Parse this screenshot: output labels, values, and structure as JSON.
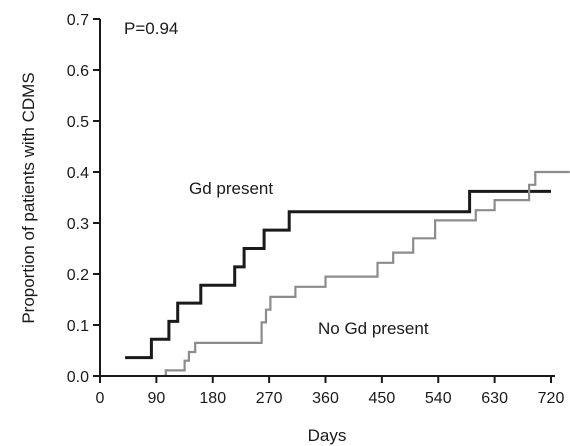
{
  "chart_data": {
    "type": "line",
    "step": true,
    "xlabel": "Days",
    "ylabel": "Proportion of patients with CDMS",
    "xlim": [
      0,
      720
    ],
    "ylim": [
      0,
      0.7
    ],
    "xticks": [
      0,
      90,
      180,
      270,
      360,
      450,
      540,
      630,
      720
    ],
    "yticks": [
      "0.0",
      "0.1",
      "0.2",
      "0.3",
      "0.4",
      "0.5",
      "0.6",
      "0.7"
    ],
    "grid": false,
    "annotations": {
      "pvalue": "P=0.94",
      "gd_present": "Gd present",
      "no_gd_present": "No Gd present"
    },
    "series": [
      {
        "name": "Gd present",
        "color": "#1a1a1a",
        "points": [
          [
            40,
            0.036
          ],
          [
            82,
            0.036
          ],
          [
            82,
            0.072
          ],
          [
            110,
            0.072
          ],
          [
            110,
            0.107
          ],
          [
            124,
            0.107
          ],
          [
            124,
            0.143
          ],
          [
            161,
            0.143
          ],
          [
            161,
            0.178
          ],
          [
            215,
            0.178
          ],
          [
            215,
            0.214
          ],
          [
            230,
            0.214
          ],
          [
            230,
            0.25
          ],
          [
            262,
            0.25
          ],
          [
            262,
            0.286
          ],
          [
            302,
            0.286
          ],
          [
            302,
            0.322
          ],
          [
            590,
            0.322
          ],
          [
            590,
            0.362
          ],
          [
            720,
            0.362
          ]
        ]
      },
      {
        "name": "No Gd present",
        "color": "#8c8c8c",
        "points": [
          [
            100,
            0.0
          ],
          [
            105,
            0.0
          ],
          [
            105,
            0.011
          ],
          [
            135,
            0.011
          ],
          [
            135,
            0.03
          ],
          [
            142,
            0.03
          ],
          [
            142,
            0.047
          ],
          [
            152,
            0.047
          ],
          [
            152,
            0.065
          ],
          [
            258,
            0.065
          ],
          [
            258,
            0.105
          ],
          [
            265,
            0.105
          ],
          [
            265,
            0.13
          ],
          [
            272,
            0.13
          ],
          [
            272,
            0.155
          ],
          [
            312,
            0.155
          ],
          [
            312,
            0.175
          ],
          [
            360,
            0.175
          ],
          [
            360,
            0.195
          ],
          [
            443,
            0.195
          ],
          [
            443,
            0.222
          ],
          [
            468,
            0.222
          ],
          [
            468,
            0.242
          ],
          [
            500,
            0.242
          ],
          [
            500,
            0.27
          ],
          [
            535,
            0.27
          ],
          [
            535,
            0.305
          ],
          [
            600,
            0.305
          ],
          [
            600,
            0.325
          ],
          [
            630,
            0.325
          ],
          [
            630,
            0.345
          ],
          [
            685,
            0.345
          ],
          [
            685,
            0.375
          ],
          [
            695,
            0.375
          ],
          [
            695,
            0.4
          ],
          [
            750,
            0.4
          ]
        ]
      }
    ]
  }
}
